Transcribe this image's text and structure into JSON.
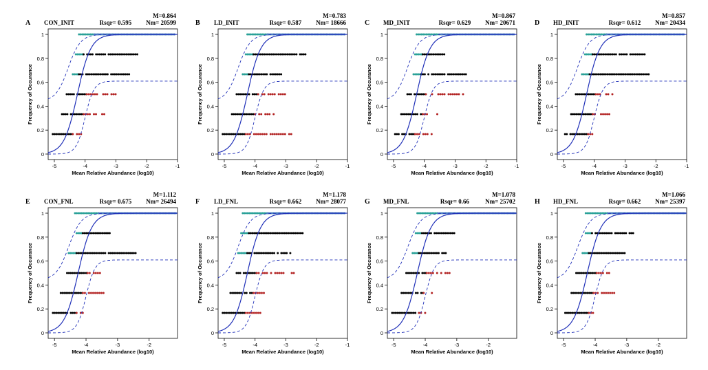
{
  "figure": {
    "ylabel": "Frequency of Occurance",
    "xlabel": "Mean Relative Abundance (log10)"
  },
  "colors": {
    "above": "#2aa198",
    "neutral": "#000000",
    "below": "#b22222",
    "fit": "#1f2fb8",
    "ci": "#1f2fb8",
    "top_dots": "#4a7fc0"
  },
  "chart_data": [
    {
      "type": "scatter",
      "letter": "A",
      "title": "CON_INIT",
      "rsqr": "Rsqr= 0.595",
      "m": "M=0.864",
      "nm": "Nm= 20599",
      "xlim": [
        -5.2,
        -1
      ],
      "ylim": [
        0,
        1
      ],
      "xticks": [
        "-5",
        "-4",
        "-3",
        "-2",
        "-1"
      ],
      "xtick_values": [
        -5,
        -4,
        -3,
        -2,
        -1
      ],
      "yticks": [
        "0",
        "0.2",
        "0.4",
        "0.6",
        "0.8",
        "1"
      ],
      "ytick_values": [
        0,
        0.2,
        0.4,
        0.6,
        0.8,
        1
      ],
      "levels": [
        {
          "y": 0.1667,
          "teal": [],
          "black": [
            -5.05,
            -4.4
          ],
          "red": [
            -4.4,
            -3.95
          ]
        },
        {
          "y": 0.3333,
          "teal": [],
          "black": [
            -4.75,
            -4.05
          ],
          "red": [
            -4.05,
            -3.35
          ]
        },
        {
          "y": 0.5,
          "teal": [],
          "black": [
            -4.6,
            -3.95
          ],
          "red": [
            -3.95,
            -2.95
          ]
        },
        {
          "y": 0.6667,
          "teal": [
            -4.4,
            -4.2
          ],
          "black": [
            -4.2,
            -2.55
          ],
          "red": []
        },
        {
          "y": 0.8333,
          "teal": [
            -4.3,
            -4.05
          ],
          "black": [
            -4.05,
            -2.25
          ],
          "red": []
        },
        {
          "y": 1.0,
          "teal": [
            -4.2,
            -3.7
          ],
          "top": [
            -3.7,
            -1.05
          ],
          "black": [],
          "red": []
        }
      ]
    },
    {
      "type": "scatter",
      "letter": "B",
      "title": "LD_INIT",
      "rsqr": "Rsqr= 0.587",
      "m": "M=0.783",
      "nm": "Nm= 18666",
      "xlim": [
        -5.2,
        -1
      ],
      "ylim": [
        0,
        1
      ],
      "xticks": [
        "-5",
        "-4",
        "-3",
        "-2",
        "-1"
      ],
      "xtick_values": [
        -5,
        -4,
        -3,
        -2,
        -1
      ],
      "yticks": [
        "0",
        "0.2",
        "0.4",
        "0.6",
        "0.8",
        "1"
      ],
      "ytick_values": [
        0,
        0.2,
        0.4,
        0.6,
        0.8,
        1
      ],
      "levels": [
        {
          "y": 0.1667,
          "teal": [],
          "black": [
            -5.05,
            -4.3
          ],
          "red": [
            -4.3,
            -2.8
          ]
        },
        {
          "y": 0.3333,
          "teal": [],
          "black": [
            -4.75,
            -4.0
          ],
          "red": [
            -4.0,
            -3.35
          ]
        },
        {
          "y": 0.5,
          "teal": [],
          "black": [
            -4.6,
            -3.9
          ],
          "red": [
            -3.9,
            -3.0
          ]
        },
        {
          "y": 0.6667,
          "teal": [
            -4.4,
            -4.2
          ],
          "black": [
            -4.2,
            -3.1
          ],
          "red": []
        },
        {
          "y": 0.8333,
          "teal": [
            -4.3,
            -4.05
          ],
          "black": [
            -4.05,
            -2.35
          ],
          "red": []
        },
        {
          "y": 1.0,
          "teal": [
            -4.25,
            -3.6
          ],
          "top": [
            -3.6,
            -1.05
          ],
          "black": [],
          "red": []
        }
      ]
    },
    {
      "type": "scatter",
      "letter": "C",
      "title": "MD_INIT",
      "rsqr": "Rsqr= 0.629",
      "m": "M=0.867",
      "nm": "Nm= 20671",
      "xlim": [
        -5.2,
        -1
      ],
      "ylim": [
        0,
        1
      ],
      "xticks": [
        "-5",
        "-4",
        "-3",
        "-2",
        "-1"
      ],
      "xtick_values": [
        -5,
        -4,
        -3,
        -2,
        -1
      ],
      "yticks": [
        "0",
        "0.2",
        "0.4",
        "0.6",
        "0.8",
        "1"
      ],
      "ytick_values": [
        0,
        0.2,
        0.4,
        0.6,
        0.8,
        1
      ],
      "levels": [
        {
          "y": 0.1667,
          "teal": [],
          "black": [
            -4.95,
            -4.3
          ],
          "red": [
            -4.3,
            -3.75
          ]
        },
        {
          "y": 0.3333,
          "teal": [],
          "black": [
            -4.75,
            -4.05
          ],
          "red": [
            -4.05,
            -3.45
          ]
        },
        {
          "y": 0.5,
          "teal": [],
          "black": [
            -4.55,
            -3.95
          ],
          "red": [
            -3.95,
            -2.6
          ]
        },
        {
          "y": 0.6667,
          "teal": [
            -4.35,
            -4.1
          ],
          "black": [
            -4.1,
            -2.55
          ],
          "red": []
        },
        {
          "y": 0.8333,
          "teal": [
            -4.3,
            -4.05
          ],
          "black": [
            -4.05,
            -3.35
          ],
          "red": []
        },
        {
          "y": 1.0,
          "teal": [
            -4.25,
            -3.5
          ],
          "top": [
            -3.5,
            -1.05
          ],
          "black": [],
          "red": []
        }
      ]
    },
    {
      "type": "scatter",
      "letter": "D",
      "title": "HD_INIT",
      "rsqr": "Rsqr= 0.612",
      "m": "M=0.857",
      "nm": "Nm= 20434",
      "xlim": [
        -5.2,
        -1
      ],
      "ylim": [
        0,
        1
      ],
      "xticks": [
        "-5",
        "-4",
        "-3",
        "-2",
        "-1"
      ],
      "xtick_values": [
        -5,
        -4,
        -3,
        -2,
        -1
      ],
      "yticks": [
        "0",
        "0.2",
        "0.4",
        "0.6",
        "0.8",
        "1"
      ],
      "ytick_values": [
        0,
        0.2,
        0.4,
        0.6,
        0.8,
        1
      ],
      "levels": [
        {
          "y": 0.1667,
          "teal": [],
          "black": [
            -4.95,
            -4.2
          ],
          "red": [
            -4.2,
            -4.05
          ]
        },
        {
          "y": 0.3333,
          "teal": [],
          "black": [
            -4.75,
            -4.05
          ],
          "red": [
            -4.05,
            -3.25
          ]
        },
        {
          "y": 0.5,
          "teal": [],
          "black": [
            -4.6,
            -3.95
          ],
          "red": [
            -3.95,
            -3.35
          ]
        },
        {
          "y": 0.6667,
          "teal": [
            -4.4,
            -4.15
          ],
          "black": [
            -4.15,
            -2.2
          ],
          "red": []
        },
        {
          "y": 0.8333,
          "teal": [
            -4.3,
            -4.05
          ],
          "black": [
            -4.05,
            -2.35
          ],
          "red": []
        },
        {
          "y": 1.0,
          "teal": [
            -4.25,
            -3.6
          ],
          "top": [
            -3.6,
            -1.05
          ],
          "black": [],
          "red": []
        }
      ]
    },
    {
      "type": "scatter",
      "letter": "E",
      "title": "CON_FNL",
      "rsqr": "Rsqr= 0.675",
      "m": "M=1.112",
      "nm": "Nm= 26494",
      "xlim": [
        -5.2,
        -1.1
      ],
      "ylim": [
        0,
        1
      ],
      "xticks": [
        "-5",
        "-4",
        "-3",
        "-2"
      ],
      "xtick_values": [
        -5,
        -4,
        -3,
        -2
      ],
      "yticks": [
        "0",
        "0.2",
        "0.4",
        "0.6",
        "0.8",
        "1"
      ],
      "ytick_values": [
        0,
        0.2,
        0.4,
        0.6,
        0.8,
        1
      ],
      "levels": [
        {
          "y": 0.1667,
          "teal": [],
          "black": [
            -5.05,
            -4.3
          ],
          "red": [
            -4.3,
            -4.1
          ]
        },
        {
          "y": 0.3333,
          "teal": [],
          "black": [
            -4.8,
            -4.1
          ],
          "red": [
            -4.1,
            -3.4
          ]
        },
        {
          "y": 0.5,
          "teal": [],
          "black": [
            -4.6,
            -3.95
          ],
          "red": [
            -3.95,
            -3.55
          ]
        },
        {
          "y": 0.6667,
          "teal": [
            -4.55,
            -4.3
          ],
          "black": [
            -4.3,
            -2.4
          ],
          "red": []
        },
        {
          "y": 0.8333,
          "teal": [
            -4.3,
            -4.1
          ],
          "black": [
            -4.1,
            -3.2
          ],
          "red": []
        },
        {
          "y": 1.0,
          "teal": [
            -4.35,
            -3.6
          ],
          "top": [
            -3.6,
            -1.15
          ],
          "black": [],
          "red": []
        }
      ]
    },
    {
      "type": "scatter",
      "letter": "F",
      "title": "LD_FNL",
      "rsqr": "Rsqr= 0.662",
      "m": "M=1.178",
      "nm": "Nm= 28077",
      "xlim": [
        -5.2,
        -1
      ],
      "ylim": [
        0,
        1
      ],
      "xticks": [
        "-5",
        "-4",
        "-3",
        "-2",
        "-1"
      ],
      "xtick_values": [
        -5,
        -4,
        -3,
        -2,
        -1
      ],
      "yticks": [
        "0",
        "0.2",
        "0.4",
        "0.6",
        "0.8",
        "1"
      ],
      "ytick_values": [
        0,
        0.2,
        0.4,
        0.6,
        0.8,
        1
      ],
      "levels": [
        {
          "y": 0.1667,
          "teal": [],
          "black": [
            -5.05,
            -4.3
          ],
          "red": [
            -4.3,
            -3.75
          ]
        },
        {
          "y": 0.3333,
          "teal": [],
          "black": [
            -4.8,
            -4.05
          ],
          "red": [
            -4.05,
            -3.6
          ]
        },
        {
          "y": 0.5,
          "teal": [],
          "black": [
            -4.6,
            -3.95
          ],
          "red": [
            -3.95,
            -2.7
          ]
        },
        {
          "y": 0.6667,
          "teal": [
            -4.55,
            -4.25
          ],
          "black": [
            -4.25,
            -2.85
          ],
          "red": []
        },
        {
          "y": 0.8333,
          "teal": [
            -4.45,
            -4.2
          ],
          "black": [
            -4.2,
            -2.45
          ],
          "red": []
        },
        {
          "y": 1.0,
          "teal": [
            -4.4,
            -3.6
          ],
          "top": [
            -3.6,
            -1.05
          ],
          "black": [],
          "red": []
        }
      ]
    },
    {
      "type": "scatter",
      "letter": "G",
      "title": "MD_FNL",
      "rsqr": "Rsqr= 0.66",
      "m": "M=1.078",
      "nm": "Nm= 25702",
      "xlim": [
        -5.2,
        -1.1
      ],
      "ylim": [
        0,
        1
      ],
      "xticks": [
        "-5",
        "-4",
        "-3",
        "-2"
      ],
      "xtick_values": [
        -5,
        -4,
        -3,
        -2
      ],
      "yticks": [
        "0",
        "0.2",
        "0.4",
        "0.6",
        "0.8",
        "1"
      ],
      "ytick_values": [
        0,
        0.2,
        0.4,
        0.6,
        0.8,
        1
      ],
      "levels": [
        {
          "y": 0.1667,
          "teal": [],
          "black": [
            -5.05,
            -4.2
          ],
          "red": [
            -4.2,
            -3.85
          ]
        },
        {
          "y": 0.3333,
          "teal": [],
          "black": [
            -4.75,
            -4.05
          ],
          "red": [
            -4.05,
            -3.75
          ]
        },
        {
          "y": 0.5,
          "teal": [],
          "black": [
            -4.6,
            -3.95
          ],
          "red": [
            -3.95,
            -3.0
          ]
        },
        {
          "y": 0.6667,
          "teal": [
            -4.4,
            -4.2
          ],
          "black": [
            -4.2,
            -3.3
          ],
          "red": []
        },
        {
          "y": 0.8333,
          "teal": [
            -4.3,
            -4.1
          ],
          "black": [
            -4.1,
            -3.05
          ],
          "red": []
        },
        {
          "y": 1.0,
          "teal": [
            -4.25,
            -3.6
          ],
          "top": [
            -3.6,
            -1.15
          ],
          "black": [],
          "red": []
        }
      ]
    },
    {
      "type": "scatter",
      "letter": "H",
      "title": "HD_FNL",
      "rsqr": "Rsqr= 0.662",
      "m": "M=1.066",
      "nm": "Nm= 25397",
      "xlim": [
        -5.2,
        -1.1
      ],
      "ylim": [
        0,
        1
      ],
      "xticks": [
        "-5",
        "-4",
        "-3",
        "-2"
      ],
      "xtick_values": [
        -5,
        -4,
        -3,
        -2
      ],
      "yticks": [
        "0",
        "0.2",
        "0.4",
        "0.6",
        "0.8",
        "1"
      ],
      "ytick_values": [
        0,
        0.2,
        0.4,
        0.6,
        0.8,
        1
      ],
      "levels": [
        {
          "y": 0.1667,
          "teal": [],
          "black": [
            -4.95,
            -4.2
          ],
          "red": [
            -4.2,
            -3.95
          ]
        },
        {
          "y": 0.3333,
          "teal": [],
          "black": [
            -4.75,
            -4.05
          ],
          "red": [
            -4.05,
            -3.3
          ]
        },
        {
          "y": 0.5,
          "teal": [],
          "black": [
            -4.6,
            -3.95
          ],
          "red": [
            -3.95,
            -3.55
          ]
        },
        {
          "y": 0.6667,
          "teal": [
            -4.4,
            -4.2
          ],
          "black": [
            -4.2,
            -3.05
          ],
          "red": []
        },
        {
          "y": 0.8333,
          "teal": [
            -4.3,
            -4.1
          ],
          "black": [
            -4.1,
            -2.75
          ],
          "red": []
        },
        {
          "y": 1.0,
          "teal": [
            -4.3,
            -3.6
          ],
          "top": [
            -3.6,
            -1.15
          ],
          "black": [],
          "red": []
        }
      ]
    }
  ]
}
